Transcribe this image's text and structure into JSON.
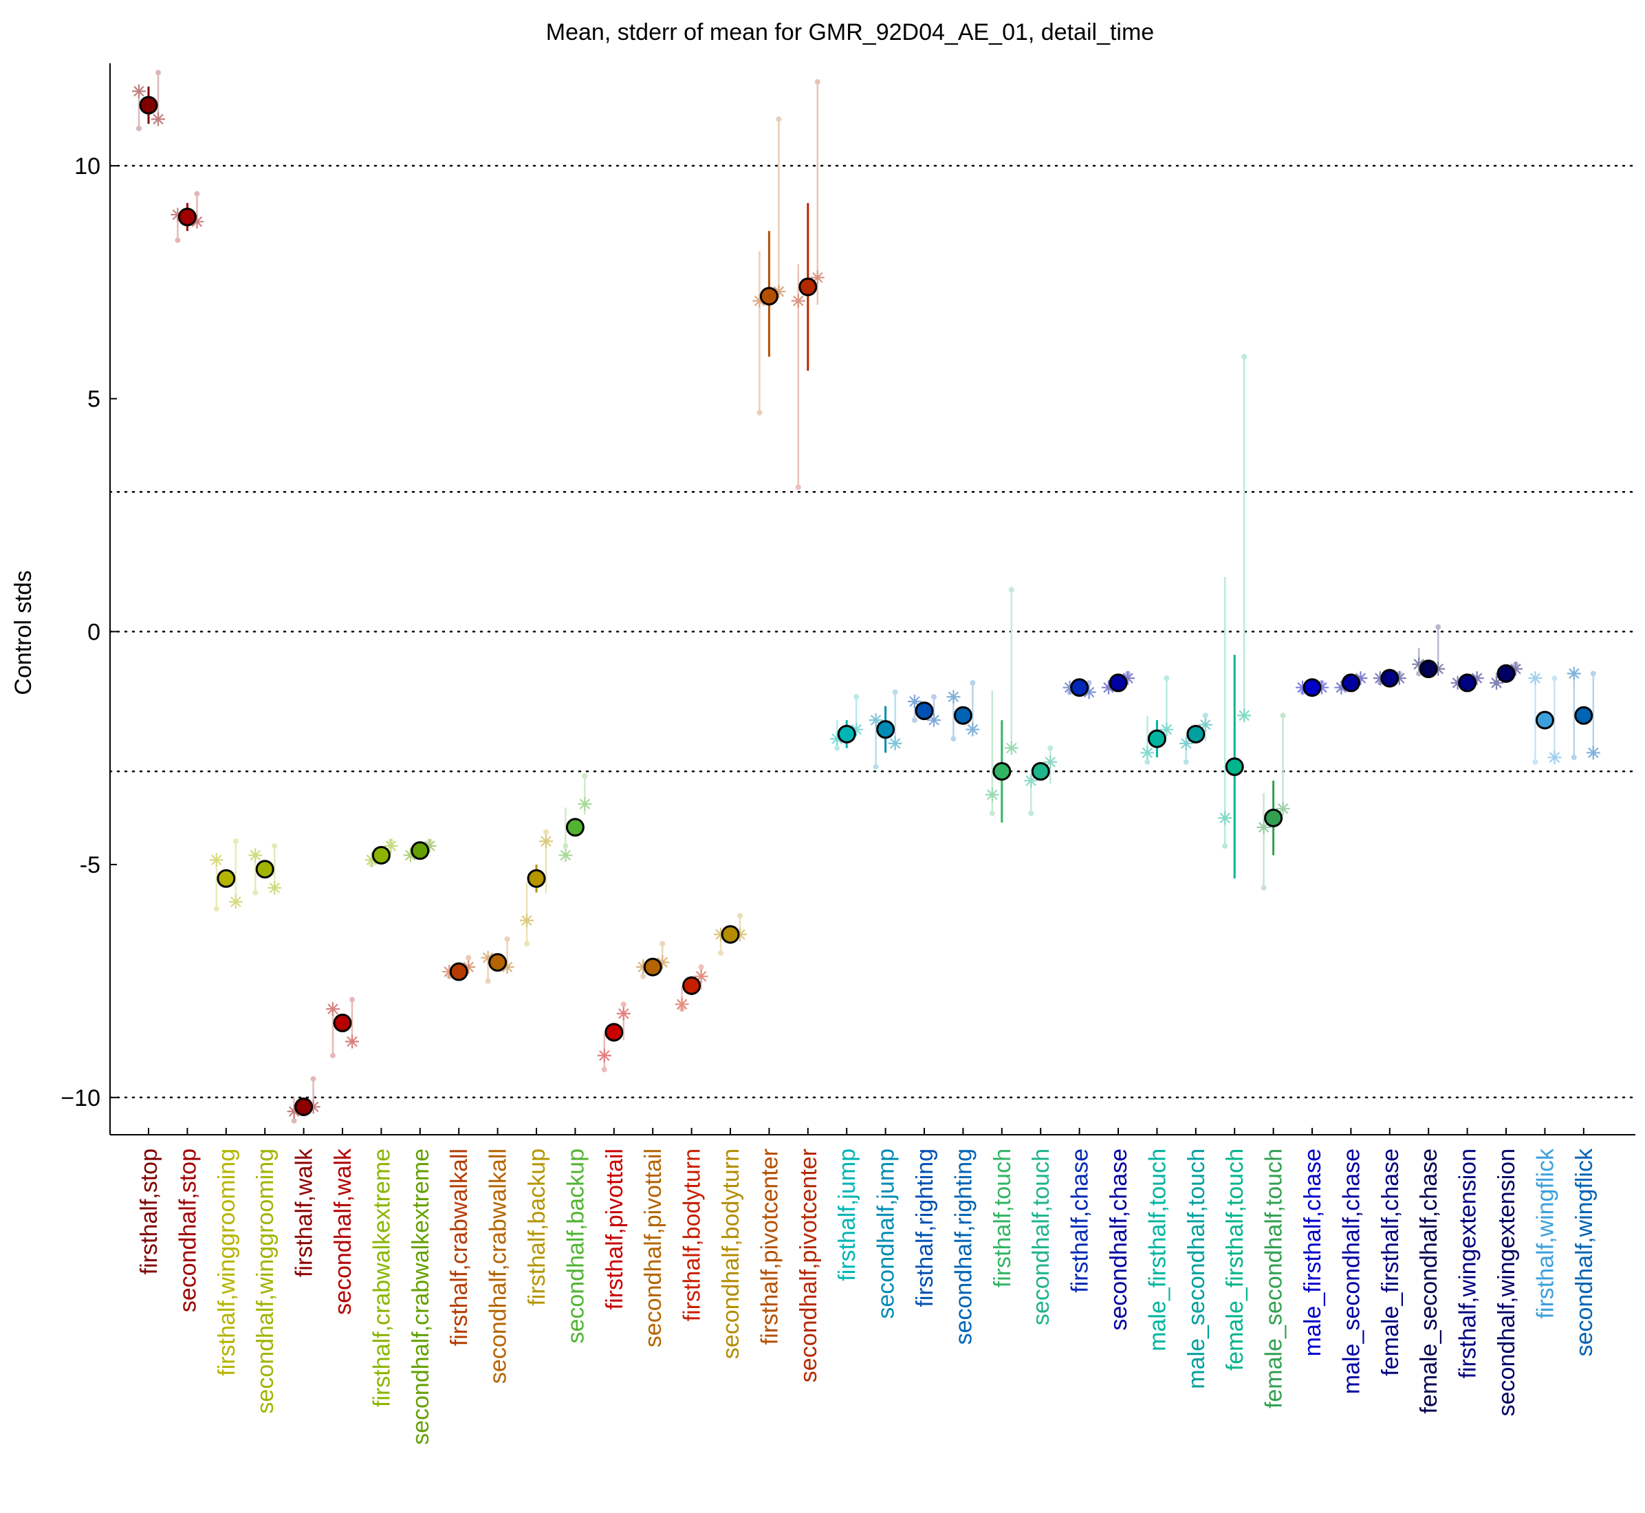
{
  "chart_data": {
    "type": "scatter",
    "title": "Mean, stderr of mean for GMR_92D04_AE_01, detail_time",
    "ylabel": "Control stds",
    "xlabel": "",
    "ylim": [
      -10.8,
      12.2
    ],
    "yticks": [
      -10,
      -5,
      0,
      5,
      10
    ],
    "ytick_labels": [
      "−10",
      "-5",
      "0",
      "5",
      "10"
    ],
    "reference_lines": [
      -10,
      -3,
      0,
      3,
      10
    ],
    "reference_line_style": "dotted",
    "grid": false,
    "legend": "none",
    "markers": {
      "mean": "filled circle with error bar",
      "individual": "asterisk"
    },
    "categories": [
      "firsthalf,stop",
      "secondhalf,stop",
      "firsthalf,winggrooming",
      "secondhalf,winggrooming",
      "firsthalf,walk",
      "secondhalf,walk",
      "firsthalf,crabwalkextreme",
      "secondhalf,crabwalkextreme",
      "firsthalf,crabwalkall",
      "secondhalf,crabwalkall",
      "firsthalf,backup",
      "secondhalf,backup",
      "firsthalf,pivottail",
      "secondhalf,pivottail",
      "firsthalf,bodyturn",
      "secondhalf,bodyturn",
      "firsthalf,pivotcenter",
      "secondhalf,pivotcenter",
      "firsthalf,jump",
      "secondhalf,jump",
      "firsthalf,righting",
      "secondhalf,righting",
      "firsthalf,touch",
      "secondhalf,touch",
      "firsthalf,chase",
      "secondhalf,chase",
      "male_firsthalf,touch",
      "male_secondhalf,touch",
      "female_firsthalf,touch",
      "female_secondhalf,touch",
      "male_firsthalf,chase",
      "male_secondhalf,chase",
      "female_firsthalf,chase",
      "female_secondhalf,chase",
      "firsthalf,wingextension",
      "secondhalf,wingextension",
      "firsthalf,wingflick",
      "secondhalf,wingflick"
    ],
    "colors": [
      "#800000",
      "#a00000",
      "#b4b400",
      "#a0b400",
      "#8c0000",
      "#b40000",
      "#8cb400",
      "#64a000",
      "#b43c00",
      "#b46400",
      "#b49600",
      "#50b432",
      "#c80000",
      "#b46400",
      "#c81e00",
      "#b48c00",
      "#b45000",
      "#b42800",
      "#00b4b4",
      "#008cb4",
      "#0050b4",
      "#0064b4",
      "#32b464",
      "#1eb48c",
      "#0028b4",
      "#0000a0",
      "#00b4a0",
      "#00a0a0",
      "#00b48c",
      "#32a050",
      "#0000c8",
      "#0000a0",
      "#000080",
      "#000050",
      "#000080",
      "#000064",
      "#3ca0dc",
      "#0064b4"
    ],
    "series": [
      {
        "mean": [
          11.3,
          8.9,
          -5.3,
          -5.1,
          -10.2,
          -8.4,
          -4.8,
          -4.7,
          -7.3,
          -7.1,
          -5.3,
          -4.2,
          -8.6,
          -7.2,
          -7.6,
          -6.5,
          7.2,
          7.4,
          -2.2,
          -2.1,
          -1.7,
          -1.8,
          -3.0,
          -3.0,
          -1.2,
          -1.1,
          -2.3,
          -2.2,
          -2.9,
          -4.0,
          -1.2,
          -1.1,
          -1.0,
          -0.8,
          -1.1,
          -0.9,
          -1.9,
          -1.8
        ]
      },
      {
        "err_low": [
          10.9,
          8.6,
          -5.4,
          -5.2,
          -10.4,
          -8.5,
          -4.9,
          -4.8,
          -7.4,
          -7.2,
          -5.6,
          -4.4,
          -8.8,
          -7.3,
          -7.8,
          -6.6,
          5.9,
          5.6,
          -2.5,
          -2.6,
          -1.8,
          -1.9,
          -4.1,
          -3.2,
          -1.3,
          -1.2,
          -2.7,
          -2.3,
          -5.3,
          -4.8,
          -1.3,
          -1.2,
          -1.1,
          -0.9,
          -1.2,
          -1.0,
          -2.0,
          -1.9
        ]
      },
      {
        "err_high": [
          11.7,
          9.2,
          -5.2,
          -5.0,
          -10.0,
          -8.3,
          -4.7,
          -4.6,
          -7.2,
          -7.0,
          -5.0,
          -4.0,
          -8.4,
          -7.1,
          -7.4,
          -6.4,
          8.6,
          9.2,
          -1.9,
          -1.6,
          -1.6,
          -1.7,
          -1.9,
          -2.8,
          -1.1,
          -1.0,
          -1.9,
          -2.1,
          -0.5,
          -3.2,
          -1.1,
          -1.0,
          -0.9,
          -0.7,
          -1.0,
          -0.8,
          -1.8,
          -1.7
        ]
      },
      {
        "individual": [
          [
            11.6,
            11.0
          ],
          [
            8.95,
            8.8
          ],
          [
            -4.9,
            -5.8
          ],
          [
            -4.8,
            -5.5
          ],
          [
            -10.3,
            -10.2
          ],
          [
            -8.1,
            -8.8
          ],
          [
            -4.9,
            -4.6
          ],
          [
            -4.8,
            -4.6
          ],
          [
            -7.3,
            -7.2
          ],
          [
            -7.0,
            -7.2
          ],
          [
            -6.2,
            -4.5
          ],
          [
            -4.8,
            -3.7
          ],
          [
            -9.1,
            -8.2
          ],
          [
            -7.2,
            -7.1
          ],
          [
            -8.0,
            -7.4
          ],
          [
            -6.5,
            -6.5
          ],
          [
            7.1,
            7.3
          ],
          [
            7.1,
            7.6
          ],
          [
            -2.3,
            -2.1
          ],
          [
            -1.9,
            -2.4
          ],
          [
            -1.5,
            -1.9
          ],
          [
            -1.4,
            -2.1
          ],
          [
            -3.5,
            -2.5
          ],
          [
            -3.2,
            -2.8
          ],
          [
            -1.2,
            -1.3
          ],
          [
            -1.2,
            -1.0
          ],
          [
            -2.6,
            -2.1
          ],
          [
            -2.4,
            -2.0
          ],
          [
            -4.0,
            -1.8
          ],
          [
            -4.2,
            -3.8
          ],
          [
            -1.2,
            -1.2
          ],
          [
            -1.2,
            -1.0
          ],
          [
            -1.0,
            -1.0
          ],
          [
            -0.7,
            -0.8
          ],
          [
            -1.1,
            -1.0
          ],
          [
            -1.1,
            -0.8
          ],
          [
            -1.0,
            -2.7
          ],
          [
            -0.9,
            -2.6
          ]
        ]
      },
      {
        "range_low": [
          10.8,
          8.4,
          -5.95,
          -5.6,
          -10.5,
          -9.1,
          -5.0,
          -4.8,
          -7.4,
          -7.5,
          -6.7,
          -4.6,
          -9.4,
          -7.4,
          -8.1,
          -6.9,
          4.7,
          3.1,
          -2.5,
          -2.9,
          -1.9,
          -2.3,
          -3.9,
          -3.9,
          -1.3,
          -1.2,
          -2.8,
          -2.8,
          -4.6,
          -5.5,
          -1.3,
          -1.2,
          -1.1,
          -0.9,
          -1.1,
          -1.1,
          -2.8,
          -2.7
        ]
      },
      {
        "range_high": [
          12.0,
          9.4,
          -4.5,
          -4.6,
          -9.6,
          -7.9,
          -4.5,
          -4.5,
          -7.0,
          -6.6,
          -4.3,
          -3.1,
          -8.0,
          -6.7,
          -7.2,
          -6.1,
          11.0,
          11.8,
          -1.4,
          -1.3,
          -1.4,
          -1.1,
          0.9,
          -2.5,
          -1.1,
          -0.9,
          -1.0,
          -1.8,
          5.9,
          -1.8,
          -1.1,
          -1.0,
          -0.9,
          0.1,
          -1.0,
          -0.7,
          -1.0,
          -0.9
        ]
      }
    ]
  }
}
